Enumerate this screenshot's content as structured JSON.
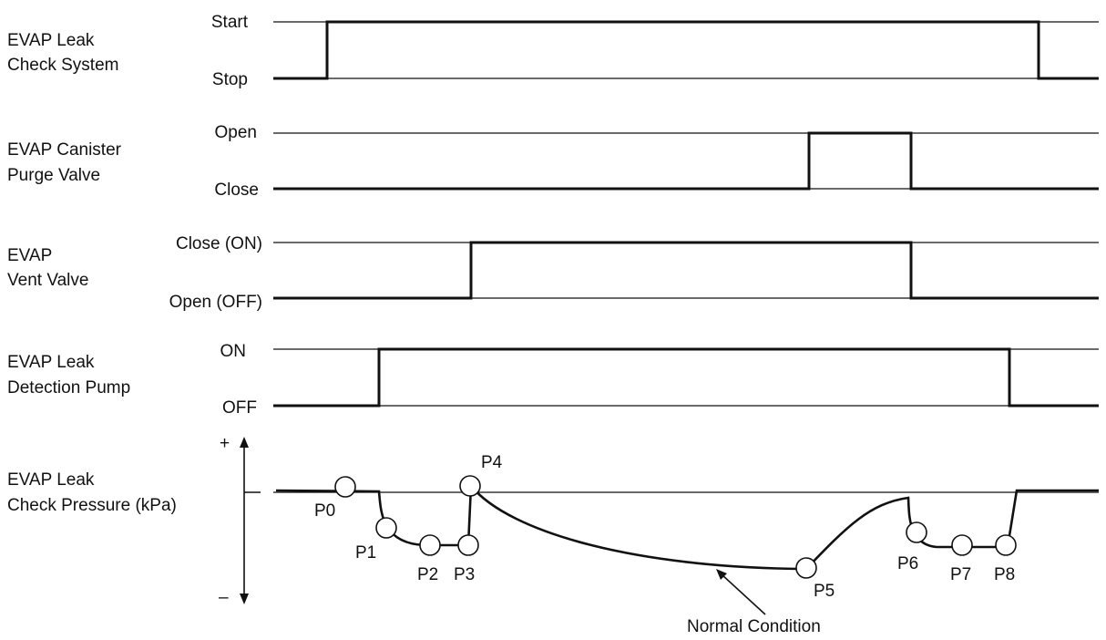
{
  "rows": [
    {
      "id": "leak-check-system",
      "label": [
        "EVAP Leak",
        "Check System"
      ],
      "high": "Start",
      "low": "Stop"
    },
    {
      "id": "canister-purge-valve",
      "label": [
        "EVAP Canister",
        "Purge Valve"
      ],
      "high": "Open",
      "low": "Close"
    },
    {
      "id": "vent-valve",
      "label": [
        "EVAP",
        "Vent Valve"
      ],
      "high": "Close (ON)",
      "low": "Open (OFF)"
    },
    {
      "id": "leak-detection-pump",
      "label": [
        "EVAP Leak",
        "Detection Pump"
      ],
      "high": "ON",
      "low": "OFF"
    }
  ],
  "pressure": {
    "label": [
      "EVAP Leak",
      "Check Pressure (kPa)"
    ],
    "plus": "+",
    "minus": "–",
    "points": [
      "P0",
      "P1",
      "P2",
      "P3",
      "P4",
      "P5",
      "P6",
      "P7",
      "P8"
    ]
  },
  "annotation": "Normal Condition"
}
